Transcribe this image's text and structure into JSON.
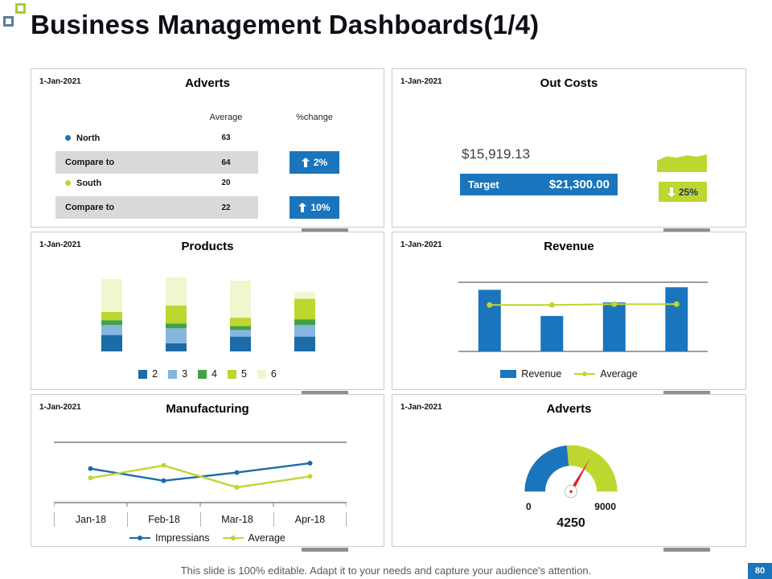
{
  "slide": {
    "title": "Business Management Dashboards(1/4)",
    "footer": "This slide is 100% editable. Adapt it to your needs and capture your audience's attention.",
    "page_number": "80"
  },
  "colors": {
    "blue": "#1b75bc",
    "green": "#bed630",
    "red": "#e02330",
    "row_shade": "#d9d9d9"
  },
  "chart_data": [
    {
      "id": "adverts_table",
      "type": "table",
      "title": "Adverts",
      "date": "1-Jan-2021",
      "columns": [
        "Average",
        "%change"
      ],
      "rows": [
        {
          "label": "North",
          "average": 63,
          "dot_color": "#1b75bc"
        },
        {
          "label": "Compare to",
          "average": 64,
          "change": "2%",
          "change_direction": "up"
        },
        {
          "label": "South",
          "average": 20,
          "dot_color": "#bed630"
        },
        {
          "label": "Compare to",
          "average": 22,
          "change": "10%",
          "change_direction": "up"
        }
      ]
    },
    {
      "id": "out_costs",
      "type": "kpi",
      "title": "Out Costs",
      "date": "1-Jan-2021",
      "current_value": "$15,919.13",
      "target_label": "Target",
      "target_value": "$21,300.00",
      "change": "25%",
      "change_direction": "down",
      "accent_color": "#1b75bc",
      "change_color": "#bed630",
      "sparkline_values": [
        3.2,
        4.4,
        4.0,
        4.6,
        4.3,
        4.9
      ]
    },
    {
      "id": "products",
      "type": "bar",
      "stacked": true,
      "title": "Products",
      "date": "1-Jan-2021",
      "categories": [
        "",
        "",
        "",
        ""
      ],
      "series": [
        {
          "name": "2",
          "color": "#1b6ca8",
          "values": [
            20,
            10,
            18,
            18
          ]
        },
        {
          "name": "3",
          "color": "#85b6e0",
          "values": [
            12,
            18,
            8,
            14
          ]
        },
        {
          "name": "4",
          "color": "#43a047",
          "values": [
            6,
            6,
            5,
            7
          ]
        },
        {
          "name": "5",
          "color": "#bed630",
          "values": [
            10,
            22,
            10,
            25
          ]
        },
        {
          "name": "6",
          "color": "#f1f6cf",
          "values": [
            40,
            34,
            45,
            8
          ]
        }
      ]
    },
    {
      "id": "revenue",
      "type": "bar",
      "title": "Revenue",
      "date": "1-Jan-2021",
      "categories": [
        "",
        "",
        "",
        ""
      ],
      "ylim": [
        0,
        80
      ],
      "legend_position": "bottom",
      "series": [
        {
          "name": "Revenue",
          "kind": "bar",
          "color": "#1b75bc",
          "values": [
            73,
            42,
            58,
            76
          ]
        },
        {
          "name": "Average",
          "kind": "line",
          "color": "#bed630",
          "values": [
            55,
            55,
            56,
            56
          ]
        }
      ]
    },
    {
      "id": "manufacturing",
      "type": "line",
      "title": "Manufacturing",
      "date": "1-Jan-2021",
      "categories": [
        "Jan-18",
        "Feb-18",
        "Mar-18",
        "Apr-18"
      ],
      "ylim": [
        0,
        100
      ],
      "legend_position": "bottom",
      "series": [
        {
          "name": "Impressians",
          "color": "#1b6ca8",
          "marker": true,
          "values": [
            62,
            40,
            55,
            72
          ]
        },
        {
          "name": "Average",
          "color": "#bed630",
          "marker": true,
          "values": [
            45,
            68,
            28,
            48
          ]
        }
      ]
    },
    {
      "id": "adverts_gauge",
      "type": "gauge",
      "title": "Adverts",
      "date": "1-Jan-2021",
      "min": 0,
      "max": 9000,
      "value": 4250,
      "min_label": "0",
      "max_label": "9000",
      "value_label": "4250",
      "segment_colors": [
        "#1b75bc",
        "#bed630"
      ],
      "needle_color": "#e02330"
    }
  ]
}
